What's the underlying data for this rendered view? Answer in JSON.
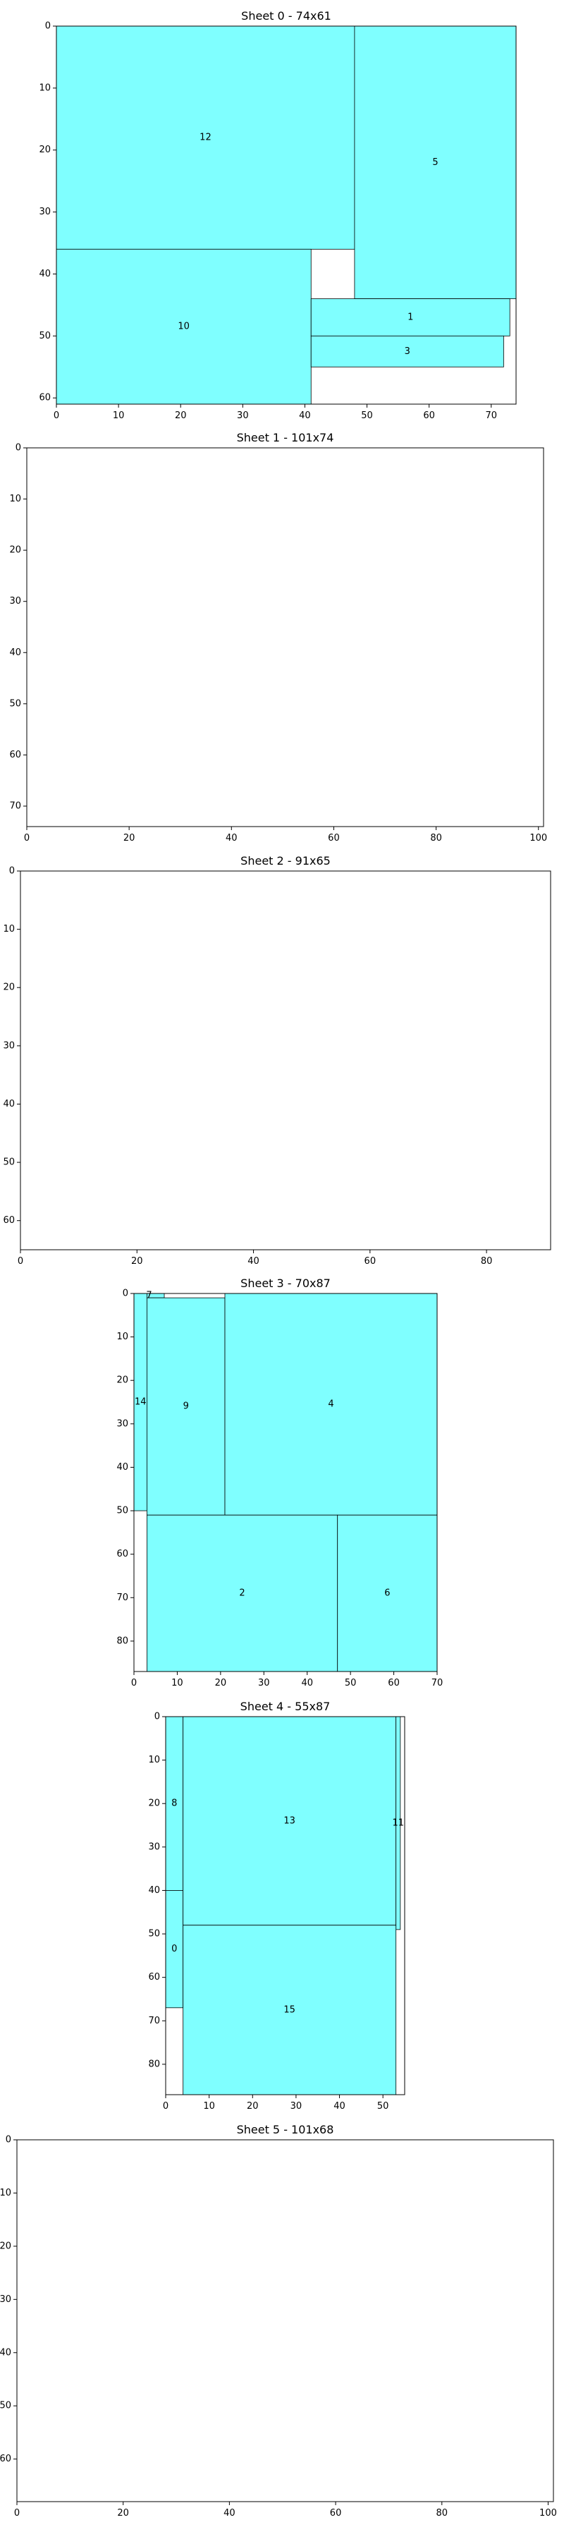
{
  "style": {
    "piece_fill": "#7fffff",
    "piece_stroke": "#000000",
    "background": "#ffffff"
  },
  "chart_data": [
    {
      "type": "packing",
      "title": "Sheet 0 - 74x61",
      "width": 74,
      "height": 61,
      "xlim": [
        0,
        74
      ],
      "ylim": [
        0,
        61
      ],
      "y_inverted": true,
      "xticks": [
        0,
        10,
        20,
        30,
        40,
        50,
        60,
        70
      ],
      "yticks": [
        0,
        10,
        20,
        30,
        40,
        50,
        60
      ],
      "pieces": [
        {
          "id": "12",
          "x": 0,
          "y": 0,
          "w": 48,
          "h": 36
        },
        {
          "id": "5",
          "x": 48,
          "y": 0,
          "w": 26,
          "h": 44
        },
        {
          "id": "10",
          "x": 0,
          "y": 36,
          "w": 41,
          "h": 25
        },
        {
          "id": "1",
          "x": 41,
          "y": 44,
          "w": 32,
          "h": 6
        },
        {
          "id": "3",
          "x": 41,
          "y": 50,
          "w": 31,
          "h": 5
        }
      ]
    },
    {
      "type": "packing",
      "title": "Sheet 1 - 101x74",
      "width": 101,
      "height": 74,
      "xlim": [
        0,
        101
      ],
      "ylim": [
        0,
        74
      ],
      "y_inverted": true,
      "xticks": [
        0,
        20,
        40,
        60,
        80,
        100
      ],
      "yticks": [
        0,
        10,
        20,
        30,
        40,
        50,
        60,
        70
      ],
      "pieces": []
    },
    {
      "type": "packing",
      "title": "Sheet 2 - 91x65",
      "width": 91,
      "height": 65,
      "xlim": [
        0,
        91
      ],
      "ylim": [
        0,
        65
      ],
      "y_inverted": true,
      "xticks": [
        0,
        20,
        40,
        60,
        80
      ],
      "yticks": [
        0,
        10,
        20,
        30,
        40,
        50,
        60
      ],
      "pieces": []
    },
    {
      "type": "packing",
      "title": "Sheet 3 - 70x87",
      "width": 70,
      "height": 87,
      "xlim": [
        0,
        70
      ],
      "ylim": [
        0,
        87
      ],
      "y_inverted": true,
      "xticks": [
        0,
        10,
        20,
        30,
        40,
        50,
        60,
        70
      ],
      "yticks": [
        0,
        10,
        20,
        30,
        40,
        50,
        60,
        70,
        80
      ],
      "pieces": [
        {
          "id": "7",
          "x": 0,
          "y": 0,
          "w": 7,
          "h": 1
        },
        {
          "id": "14",
          "x": 0,
          "y": 0,
          "w": 3,
          "h": 50
        },
        {
          "id": "9",
          "x": 3,
          "y": 1,
          "w": 18,
          "h": 50
        },
        {
          "id": "4",
          "x": 21,
          "y": 0,
          "w": 49,
          "h": 51
        },
        {
          "id": "2",
          "x": 3,
          "y": 51,
          "w": 44,
          "h": 36
        },
        {
          "id": "6",
          "x": 47,
          "y": 51,
          "w": 23,
          "h": 36
        }
      ]
    },
    {
      "type": "packing",
      "title": "Sheet 4 - 55x87",
      "width": 55,
      "height": 87,
      "xlim": [
        0,
        55
      ],
      "ylim": [
        0,
        87
      ],
      "y_inverted": true,
      "xticks": [
        0,
        10,
        20,
        30,
        40,
        50
      ],
      "yticks": [
        0,
        10,
        20,
        30,
        40,
        50,
        60,
        70,
        80
      ],
      "pieces": [
        {
          "id": "8",
          "x": 0,
          "y": 0,
          "w": 4,
          "h": 40
        },
        {
          "id": "0",
          "x": 0,
          "y": 40,
          "w": 4,
          "h": 27
        },
        {
          "id": "13",
          "x": 4,
          "y": 0,
          "w": 49,
          "h": 48
        },
        {
          "id": "11",
          "x": 53,
          "y": 0,
          "w": 1,
          "h": 49
        },
        {
          "id": "15",
          "x": 4,
          "y": 48,
          "w": 49,
          "h": 39
        }
      ]
    },
    {
      "type": "packing",
      "title": "Sheet 5 - 101x68",
      "width": 101,
      "height": 68,
      "xlim": [
        0,
        101
      ],
      "ylim": [
        0,
        68
      ],
      "y_inverted": true,
      "xticks": [
        0,
        20,
        40,
        60,
        80,
        100
      ],
      "yticks": [
        0,
        10,
        20,
        30,
        40,
        50,
        60
      ],
      "pieces": []
    }
  ]
}
